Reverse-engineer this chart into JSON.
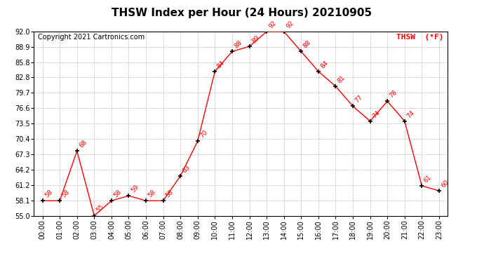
{
  "title": "THSW Index per Hour (24 Hours) 20210905",
  "copyright": "Copyright 2021 Cartronics.com",
  "legend_label": "THSW  (°F)",
  "hours": [
    0,
    1,
    2,
    3,
    4,
    5,
    6,
    7,
    8,
    9,
    10,
    11,
    12,
    13,
    14,
    15,
    16,
    17,
    18,
    19,
    20,
    21,
    22,
    23
  ],
  "values": [
    58,
    58,
    68,
    55,
    58,
    59,
    58,
    58,
    63,
    70,
    84,
    88,
    89,
    92,
    92,
    88,
    84,
    81,
    77,
    74,
    78,
    74,
    61,
    60
  ],
  "x_labels": [
    "00:00",
    "01:00",
    "02:00",
    "03:00",
    "04:00",
    "05:00",
    "06:00",
    "07:00",
    "08:00",
    "09:00",
    "10:00",
    "11:00",
    "12:00",
    "13:00",
    "14:00",
    "15:00",
    "16:00",
    "17:00",
    "18:00",
    "19:00",
    "20:00",
    "21:00",
    "22:00",
    "23:00"
  ],
  "y_ticks": [
    55.0,
    58.1,
    61.2,
    64.2,
    67.3,
    70.4,
    73.5,
    76.6,
    79.7,
    82.8,
    85.8,
    88.9,
    92.0
  ],
  "ylim": [
    55.0,
    92.0
  ],
  "line_color": "red",
  "marker_color": "black",
  "label_color": "red",
  "grid_color": "#bbbbbb",
  "background_color": "white",
  "title_fontsize": 11,
  "label_fontsize": 6.5,
  "copyright_fontsize": 7,
  "legend_fontsize": 8,
  "tick_fontsize": 7
}
